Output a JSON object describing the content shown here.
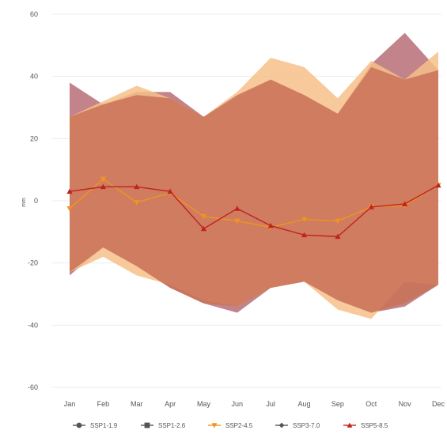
{
  "chart_data": {
    "type": "line",
    "title": "",
    "xlabel": "",
    "ylabel": "mm",
    "categories": [
      "Jan",
      "Feb",
      "Mar",
      "Apr",
      "May",
      "Jun",
      "Jul",
      "Aug",
      "Sep",
      "Oct",
      "Nov",
      "Dec"
    ],
    "ylim": [
      -60,
      60
    ],
    "yticks": [
      60,
      40,
      20,
      0,
      -20,
      -40,
      -60
    ],
    "grid": true,
    "legend_position": "bottom",
    "bands": [
      {
        "series": "SSP5-8.5",
        "color": "#b76e76",
        "upper": [
          38,
          31,
          35,
          35,
          27,
          33,
          39,
          34,
          28,
          44,
          54,
          42
        ],
        "lower": [
          -24,
          -15,
          -21,
          -28,
          -33,
          -36,
          -28,
          -26,
          -32,
          -36,
          -34,
          -27
        ]
      },
      {
        "series": "SSP2-4.5",
        "color": "#f6c08a",
        "upper": [
          27,
          32,
          37,
          33,
          27,
          35,
          46,
          43,
          33,
          45,
          39,
          48
        ],
        "lower": [
          -23,
          -18,
          -24,
          -27,
          -32,
          -34,
          -28,
          -26,
          -35,
          -38,
          -26,
          -27
        ]
      },
      {
        "series": "SSP5-8.5",
        "color": "#c97258",
        "upper": [
          27,
          31,
          34,
          33,
          27,
          34,
          39,
          34,
          28,
          43,
          39,
          42
        ],
        "lower": [
          -23,
          -15,
          -21,
          -28,
          -33,
          -34,
          -28,
          -26,
          -32,
          -36,
          -33,
          -27
        ]
      }
    ],
    "series": [
      {
        "name": "SSP2-4.5",
        "color": "#f0941f",
        "marker": "triangle-down",
        "values": [
          -2.5,
          7,
          -0.5,
          2.5,
          -5,
          -6.5,
          -8.5,
          -6,
          -6.5,
          -2,
          -1.5,
          5
        ]
      },
      {
        "name": "SSP5-8.5",
        "color": "#c0231f",
        "marker": "triangle",
        "values": [
          3,
          4.5,
          4.5,
          3,
          -9,
          -2.5,
          -8,
          -11,
          -11.5,
          -2,
          -1,
          5
        ]
      }
    ],
    "legend": [
      {
        "label": "SSP1-1.9",
        "color": "#555555",
        "marker": "circle"
      },
      {
        "label": "SSP1-2.6",
        "color": "#555555",
        "marker": "square"
      },
      {
        "label": "SSP2-4.5",
        "color": "#f0941f",
        "marker": "triangle-down"
      },
      {
        "label": "SSP3-7.0",
        "color": "#555555",
        "marker": "diamond"
      },
      {
        "label": "SSP5-8.5",
        "color": "#c0231f",
        "marker": "triangle"
      }
    ]
  }
}
